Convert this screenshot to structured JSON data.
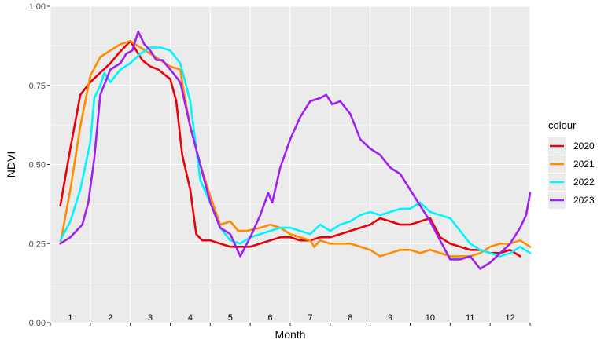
{
  "chart_data": {
    "type": "line",
    "title": "",
    "xlabel": "Month",
    "ylabel": "NDVI",
    "ylim": [
      0,
      1
    ],
    "xlim": [
      0.5,
      12.5
    ],
    "yticks": [
      "0.00",
      "0.25",
      "0.50",
      "0.75",
      "1.00"
    ],
    "ytick_values": [
      0,
      0.25,
      0.5,
      0.75,
      1.0
    ],
    "month_labels": [
      "1",
      "2",
      "3",
      "4",
      "5",
      "6",
      "7",
      "8",
      "9",
      "10",
      "11",
      "12"
    ],
    "grid": true,
    "legend": {
      "title": "colour",
      "placement": "right"
    },
    "series": [
      {
        "name": "2020",
        "color": "#e8000b",
        "x": [
          0.75,
          1.0,
          1.25,
          1.5,
          1.75,
          2.0,
          2.2,
          2.35,
          2.5,
          2.65,
          2.8,
          3.0,
          3.2,
          3.4,
          3.5,
          3.65,
          3.8,
          4.0,
          4.15,
          4.3,
          4.5,
          4.75,
          5.0,
          5.25,
          5.5,
          5.75,
          6.0,
          6.25,
          6.5,
          6.75,
          7.0,
          7.25,
          7.5,
          7.75,
          8.0,
          8.25,
          8.5,
          8.75,
          9.0,
          9.25,
          9.5,
          9.75,
          10.0,
          10.25,
          10.5,
          10.75,
          11.0,
          11.25,
          11.5,
          11.75,
          12.0,
          12.25
        ],
        "y": [
          0.37,
          0.55,
          0.72,
          0.76,
          0.79,
          0.82,
          0.85,
          0.87,
          0.89,
          0.86,
          0.83,
          0.81,
          0.8,
          0.78,
          0.77,
          0.7,
          0.53,
          0.42,
          0.28,
          0.26,
          0.26,
          0.25,
          0.24,
          0.24,
          0.24,
          0.25,
          0.26,
          0.27,
          0.27,
          0.26,
          0.26,
          0.27,
          0.27,
          0.28,
          0.29,
          0.3,
          0.31,
          0.33,
          0.32,
          0.31,
          0.31,
          0.32,
          0.33,
          0.27,
          0.25,
          0.24,
          0.23,
          0.23,
          0.22,
          0.22,
          0.23,
          0.21
        ]
      },
      {
        "name": "2021",
        "color": "#ff8c00",
        "x": [
          0.75,
          1.0,
          1.25,
          1.5,
          1.75,
          2.0,
          2.25,
          2.5,
          2.75,
          3.0,
          3.25,
          3.5,
          3.75,
          3.85,
          4.0,
          4.25,
          4.5,
          4.75,
          5.0,
          5.2,
          5.4,
          5.75,
          6.0,
          6.25,
          6.5,
          6.75,
          7.0,
          7.1,
          7.25,
          7.5,
          7.75,
          8.0,
          8.25,
          8.5,
          8.75,
          9.0,
          9.25,
          9.5,
          9.75,
          10.0,
          10.25,
          10.5,
          10.75,
          11.0,
          11.25,
          11.5,
          11.75,
          12.0,
          12.25,
          12.5
        ],
        "y": [
          0.25,
          0.42,
          0.62,
          0.78,
          0.84,
          0.86,
          0.88,
          0.89,
          0.87,
          0.85,
          0.83,
          0.81,
          0.8,
          0.72,
          0.62,
          0.5,
          0.4,
          0.31,
          0.32,
          0.29,
          0.29,
          0.3,
          0.31,
          0.3,
          0.28,
          0.27,
          0.26,
          0.24,
          0.26,
          0.25,
          0.25,
          0.25,
          0.24,
          0.23,
          0.21,
          0.22,
          0.23,
          0.23,
          0.22,
          0.23,
          0.22,
          0.21,
          0.21,
          0.21,
          0.22,
          0.24,
          0.25,
          0.25,
          0.26,
          0.24
        ]
      },
      {
        "name": "2022",
        "color": "#00f5ff",
        "x": [
          0.75,
          1.0,
          1.25,
          1.5,
          1.6,
          1.75,
          1.85,
          2.0,
          2.25,
          2.5,
          2.75,
          3.0,
          3.25,
          3.5,
          3.75,
          4.0,
          4.25,
          4.5,
          4.75,
          5.0,
          5.25,
          5.5,
          5.75,
          6.0,
          6.25,
          6.5,
          6.75,
          7.0,
          7.25,
          7.5,
          7.75,
          8.0,
          8.25,
          8.5,
          8.75,
          9.0,
          9.25,
          9.5,
          9.75,
          10.0,
          10.25,
          10.5,
          10.75,
          11.0,
          11.25,
          11.5,
          11.75,
          12.0,
          12.25,
          12.5
        ],
        "y": [
          0.26,
          0.32,
          0.42,
          0.57,
          0.71,
          0.75,
          0.79,
          0.76,
          0.8,
          0.82,
          0.85,
          0.87,
          0.87,
          0.86,
          0.82,
          0.7,
          0.45,
          0.38,
          0.3,
          0.26,
          0.25,
          0.27,
          0.28,
          0.29,
          0.3,
          0.3,
          0.29,
          0.28,
          0.31,
          0.29,
          0.31,
          0.32,
          0.34,
          0.35,
          0.34,
          0.35,
          0.36,
          0.36,
          0.38,
          0.35,
          0.34,
          0.33,
          0.29,
          0.25,
          0.23,
          0.22,
          0.21,
          0.22,
          0.24,
          0.22
        ]
      },
      {
        "name": "2023",
        "color": "#a020f0",
        "x": [
          0.75,
          1.0,
          1.15,
          1.3,
          1.45,
          1.6,
          1.75,
          2.0,
          2.25,
          2.4,
          2.55,
          2.7,
          2.85,
          3.0,
          3.15,
          3.3,
          3.5,
          3.75,
          4.0,
          4.25,
          4.5,
          4.75,
          5.0,
          5.25,
          5.5,
          5.75,
          5.95,
          6.05,
          6.25,
          6.5,
          6.75,
          7.0,
          7.25,
          7.4,
          7.55,
          7.75,
          8.0,
          8.25,
          8.5,
          8.75,
          9.0,
          9.25,
          9.5,
          9.75,
          10.0,
          10.25,
          10.5,
          10.75,
          11.0,
          11.25,
          11.5,
          11.75,
          12.0,
          12.25,
          12.4,
          12.5
        ],
        "y": [
          0.25,
          0.27,
          0.29,
          0.31,
          0.38,
          0.52,
          0.72,
          0.8,
          0.82,
          0.85,
          0.86,
          0.92,
          0.88,
          0.86,
          0.83,
          0.83,
          0.8,
          0.76,
          0.62,
          0.5,
          0.38,
          0.3,
          0.28,
          0.21,
          0.27,
          0.34,
          0.41,
          0.38,
          0.49,
          0.58,
          0.65,
          0.7,
          0.71,
          0.72,
          0.69,
          0.7,
          0.66,
          0.58,
          0.55,
          0.53,
          0.49,
          0.47,
          0.42,
          0.37,
          0.32,
          0.26,
          0.2,
          0.2,
          0.21,
          0.17,
          0.19,
          0.22,
          0.25,
          0.3,
          0.34,
          0.41
        ]
      }
    ]
  }
}
